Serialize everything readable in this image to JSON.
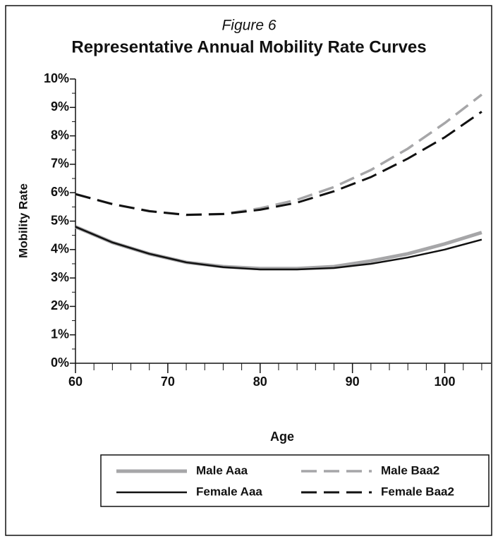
{
  "chart_data": {
    "type": "line",
    "figure_label": "Figure 6",
    "title": "Representative Annual Mobility Rate Curves",
    "x_label": "Age",
    "y_label": "Mobility Rate",
    "x": [
      60,
      64,
      68,
      72,
      76,
      80,
      84,
      88,
      92,
      96,
      100,
      104
    ],
    "series": [
      {
        "name": "Male Aaa",
        "color": "#a6a6a8",
        "style": "solid",
        "width": 5,
        "values": [
          4.8,
          4.25,
          3.85,
          3.55,
          3.4,
          3.33,
          3.33,
          3.4,
          3.6,
          3.85,
          4.2,
          4.6
        ]
      },
      {
        "name": "Male Baa2",
        "color": "#a6a6a8",
        "style": "dashed",
        "width": 3.5,
        "values": [
          5.95,
          5.6,
          5.35,
          5.22,
          5.25,
          5.45,
          5.75,
          6.2,
          6.8,
          7.55,
          8.45,
          9.45
        ]
      },
      {
        "name": "Female Aaa",
        "color": "#111111",
        "style": "solid",
        "width": 2.5,
        "values": [
          4.8,
          4.25,
          3.85,
          3.55,
          3.38,
          3.3,
          3.3,
          3.35,
          3.5,
          3.72,
          4.0,
          4.35
        ]
      },
      {
        "name": "Female Baa2",
        "color": "#111111",
        "style": "dashed",
        "width": 3,
        "values": [
          5.95,
          5.6,
          5.35,
          5.22,
          5.25,
          5.4,
          5.65,
          6.05,
          6.55,
          7.2,
          7.95,
          8.85
        ]
      }
    ],
    "xlim": [
      60,
      105
    ],
    "xticks": [
      60,
      70,
      80,
      90,
      100
    ],
    "xminorticks": [
      62,
      64,
      66,
      68,
      72,
      74,
      76,
      78,
      82,
      84,
      86,
      88,
      92,
      94,
      96,
      98,
      102,
      104
    ],
    "ylim": [
      0,
      10
    ],
    "yticks": [
      {
        "value": 0,
        "label": "0%"
      },
      {
        "value": 1,
        "label": "1%"
      },
      {
        "value": 2,
        "label": "2%"
      },
      {
        "value": 3,
        "label": "3%"
      },
      {
        "value": 4,
        "label": "4%"
      },
      {
        "value": 5,
        "label": "5%"
      },
      {
        "value": 6,
        "label": "6%"
      },
      {
        "value": 7,
        "label": "7%"
      },
      {
        "value": 8,
        "label": "8%"
      },
      {
        "value": 9,
        "label": "9%"
      },
      {
        "value": 10,
        "label": "10%"
      }
    ],
    "yminorticks": [
      0.5,
      1.5,
      2.5,
      3.5,
      4.5,
      5.5,
      6.5,
      7.5,
      8.5,
      9.5
    ],
    "grid": false,
    "legend": "bottom"
  }
}
